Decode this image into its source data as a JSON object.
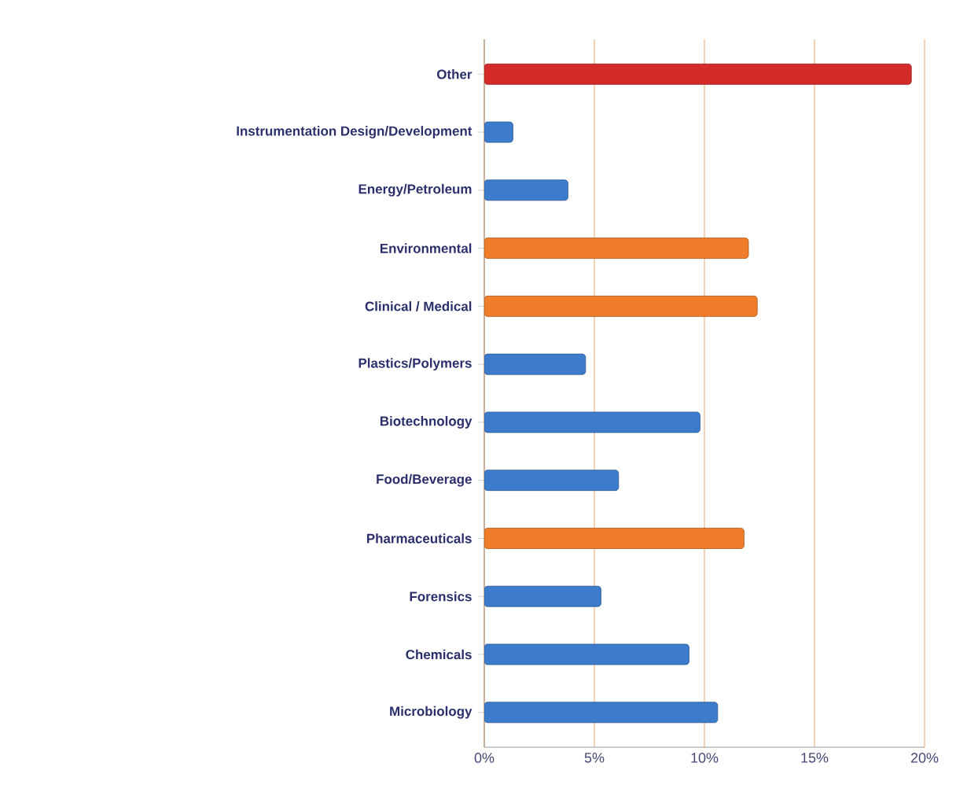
{
  "chart_data": {
    "type": "bar",
    "orientation": "horizontal",
    "categories": [
      "Other",
      "Instrumentation Design/Development",
      "Energy/Petroleum",
      "Environmental",
      "Clinical / Medical",
      "Plastics/Polymers",
      "Biotechnology",
      "Food/Beverage",
      "Pharmaceuticals",
      "Forensics",
      "Chemicals",
      "Microbiology"
    ],
    "values": [
      19.4,
      1.3,
      3.8,
      12.0,
      12.4,
      4.6,
      9.8,
      6.1,
      11.8,
      5.3,
      9.3,
      10.6
    ],
    "colors": [
      "#d42a2a",
      "#3d7ccc",
      "#3d7ccc",
      "#f07d2a",
      "#f07d2a",
      "#3d7ccc",
      "#3d7ccc",
      "#3d7ccc",
      "#f07d2a",
      "#3d7ccc",
      "#3d7ccc",
      "#3d7ccc"
    ],
    "xlim": [
      0,
      20
    ],
    "xticks": [
      {
        "value": 0,
        "label": "0%"
      },
      {
        "value": 5,
        "label": "5%"
      },
      {
        "value": 10,
        "label": "10%"
      },
      {
        "value": 15,
        "label": "15%"
      },
      {
        "value": 20,
        "label": "20%"
      }
    ],
    "grid": "x"
  }
}
